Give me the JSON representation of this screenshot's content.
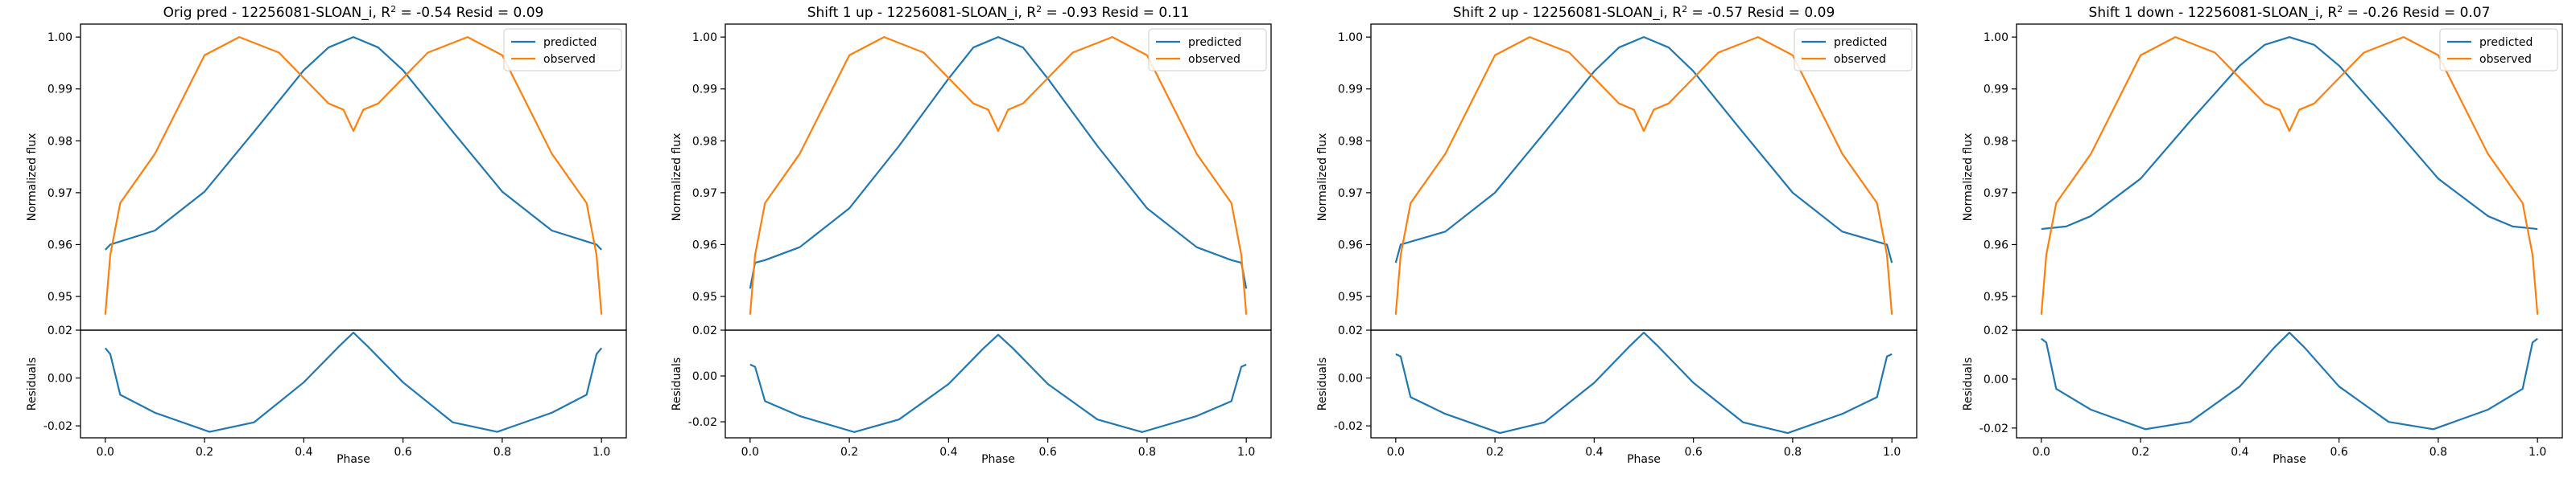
{
  "figure": {
    "colors": {
      "predicted": "#1f77b4",
      "observed": "#ff7f0e",
      "axes": "#000000"
    }
  },
  "chart_data": [
    {
      "type": "line",
      "title": "Orig pred - 12256081-SLOAN_i, R² = -0.54 Resid = 0.09",
      "xlabel": "Phase",
      "ylabel": "Normalized flux",
      "resid_ylabel": "Residuals",
      "xlim": [
        -0.05,
        1.05
      ],
      "ylim": [
        0.9435,
        1.0025
      ],
      "resid_ylim": [
        -0.025,
        0.02
      ],
      "xticks": [
        "0.0",
        "0.2",
        "0.4",
        "0.6",
        "0.8",
        "1.0"
      ],
      "yticks": [
        "0.95",
        "0.96",
        "0.97",
        "0.98",
        "0.99",
        "1.00"
      ],
      "resid_yticks": [
        "-0.02",
        "0.00",
        "0.02"
      ],
      "legend": {
        "position": "top-right",
        "entries": [
          "predicted",
          "observed"
        ]
      },
      "series": [
        {
          "name": "predicted",
          "x": [
            0.0,
            0.01,
            0.1,
            0.2,
            0.3,
            0.4,
            0.45,
            0.5,
            0.55,
            0.6,
            0.7,
            0.8,
            0.9,
            0.99,
            1.0
          ],
          "y": [
            0.959,
            0.96,
            0.9627,
            0.9702,
            0.9818,
            0.9936,
            0.998,
            1.0,
            0.998,
            0.9936,
            0.9818,
            0.9702,
            0.9627,
            0.96,
            0.959
          ]
        },
        {
          "name": "observed",
          "x": [
            0.0,
            0.01,
            0.03,
            0.1,
            0.2,
            0.27,
            0.35,
            0.45,
            0.48,
            0.5,
            0.52,
            0.55,
            0.65,
            0.73,
            0.8,
            0.9,
            0.97,
            0.99,
            1.0
          ],
          "y": [
            0.9465,
            0.958,
            0.968,
            0.9775,
            0.9965,
            1.0,
            0.997,
            0.9872,
            0.986,
            0.9819,
            0.986,
            0.9872,
            0.997,
            1.0,
            0.9965,
            0.9775,
            0.968,
            0.958,
            0.9465
          ]
        }
      ],
      "residuals": {
        "x": [
          0.0,
          0.01,
          0.03,
          0.1,
          0.21,
          0.3,
          0.4,
          0.47,
          0.5,
          0.53,
          0.6,
          0.7,
          0.79,
          0.9,
          0.97,
          0.99,
          1.0
        ],
        "y": [
          0.0125,
          0.01,
          -0.007,
          -0.0145,
          -0.0225,
          -0.0185,
          -0.0018,
          0.013,
          0.019,
          0.013,
          -0.0018,
          -0.0185,
          -0.0225,
          -0.0145,
          -0.007,
          0.01,
          0.0125
        ]
      }
    },
    {
      "type": "line",
      "title": "Shift 1 up - 12256081-SLOAN_i, R² = -0.93 Resid = 0.11",
      "xlabel": "Phase",
      "ylabel": "Normalized flux",
      "resid_ylabel": "Residuals",
      "xlim": [
        -0.05,
        1.05
      ],
      "ylim": [
        0.9435,
        1.0025
      ],
      "resid_ylim": [
        -0.027,
        0.02
      ],
      "xticks": [
        "0.0",
        "0.2",
        "0.4",
        "0.6",
        "0.8",
        "1.0"
      ],
      "yticks": [
        "0.95",
        "0.96",
        "0.97",
        "0.98",
        "0.99",
        "1.00"
      ],
      "resid_yticks": [
        "-0.02",
        "0.00",
        "0.02"
      ],
      "legend": {
        "position": "top-right",
        "entries": [
          "predicted",
          "observed"
        ]
      },
      "series": [
        {
          "name": "predicted",
          "x": [
            0.0,
            0.01,
            0.03,
            0.1,
            0.2,
            0.3,
            0.4,
            0.45,
            0.5,
            0.55,
            0.6,
            0.7,
            0.8,
            0.9,
            0.97,
            0.99,
            1.0
          ],
          "y": [
            0.9515,
            0.9565,
            0.957,
            0.9595,
            0.967,
            0.979,
            0.992,
            0.998,
            1.0,
            0.998,
            0.992,
            0.979,
            0.967,
            0.9595,
            0.957,
            0.9565,
            0.9515
          ]
        },
        {
          "name": "observed",
          "x": [
            0.0,
            0.01,
            0.03,
            0.1,
            0.2,
            0.27,
            0.35,
            0.45,
            0.48,
            0.5,
            0.52,
            0.55,
            0.65,
            0.73,
            0.8,
            0.9,
            0.97,
            0.99,
            1.0
          ],
          "y": [
            0.9465,
            0.958,
            0.968,
            0.9775,
            0.9965,
            1.0,
            0.997,
            0.9872,
            0.986,
            0.9819,
            0.986,
            0.9872,
            0.997,
            1.0,
            0.9965,
            0.9775,
            0.968,
            0.958,
            0.9465
          ]
        }
      ],
      "residuals": {
        "x": [
          0.0,
          0.01,
          0.03,
          0.1,
          0.21,
          0.3,
          0.4,
          0.47,
          0.5,
          0.53,
          0.6,
          0.7,
          0.79,
          0.9,
          0.97,
          0.99,
          1.0
        ],
        "y": [
          0.005,
          0.004,
          -0.011,
          -0.0175,
          -0.0245,
          -0.019,
          -0.0035,
          0.012,
          0.018,
          0.012,
          -0.0035,
          -0.019,
          -0.0245,
          -0.0175,
          -0.011,
          0.004,
          0.005
        ]
      }
    },
    {
      "type": "line",
      "title": "Shift 2 up - 12256081-SLOAN_i, R² = -0.57 Resid = 0.09",
      "xlabel": "Phase",
      "ylabel": "Normalized flux",
      "resid_ylabel": "Residuals",
      "xlim": [
        -0.05,
        1.05
      ],
      "ylim": [
        0.9435,
        1.0025
      ],
      "resid_ylim": [
        -0.025,
        0.02
      ],
      "xticks": [
        "0.0",
        "0.2",
        "0.4",
        "0.6",
        "0.8",
        "1.0"
      ],
      "yticks": [
        "0.95",
        "0.96",
        "0.97",
        "0.98",
        "0.99",
        "1.00"
      ],
      "resid_yticks": [
        "-0.02",
        "0.00",
        "0.02"
      ],
      "legend": {
        "position": "top-right",
        "entries": [
          "predicted",
          "observed"
        ]
      },
      "series": [
        {
          "name": "predicted",
          "x": [
            0.0,
            0.01,
            0.1,
            0.2,
            0.3,
            0.4,
            0.45,
            0.5,
            0.55,
            0.6,
            0.7,
            0.8,
            0.9,
            0.99,
            1.0
          ],
          "y": [
            0.9565,
            0.96,
            0.9625,
            0.97,
            0.9816,
            0.9934,
            0.998,
            1.0,
            0.998,
            0.9934,
            0.9816,
            0.97,
            0.9625,
            0.96,
            0.9565
          ]
        },
        {
          "name": "observed",
          "x": [
            0.0,
            0.01,
            0.03,
            0.1,
            0.2,
            0.27,
            0.35,
            0.45,
            0.48,
            0.5,
            0.52,
            0.55,
            0.65,
            0.73,
            0.8,
            0.9,
            0.97,
            0.99,
            1.0
          ],
          "y": [
            0.9465,
            0.958,
            0.968,
            0.9775,
            0.9965,
            1.0,
            0.997,
            0.9872,
            0.986,
            0.9819,
            0.986,
            0.9872,
            0.997,
            1.0,
            0.9965,
            0.9775,
            0.968,
            0.958,
            0.9465
          ]
        }
      ],
      "residuals": {
        "x": [
          0.0,
          0.01,
          0.03,
          0.1,
          0.21,
          0.3,
          0.4,
          0.47,
          0.5,
          0.53,
          0.6,
          0.7,
          0.79,
          0.9,
          0.97,
          0.99,
          1.0
        ],
        "y": [
          0.01,
          0.009,
          -0.008,
          -0.015,
          -0.023,
          -0.0185,
          -0.002,
          0.013,
          0.019,
          0.013,
          -0.002,
          -0.0185,
          -0.023,
          -0.015,
          -0.008,
          0.009,
          0.01
        ]
      }
    },
    {
      "type": "line",
      "title": "Shift 1 down - 12256081-SLOAN_i, R² = -0.26 Resid = 0.07",
      "xlabel": "Phase",
      "ylabel": "Normalized flux",
      "resid_ylabel": "Residuals",
      "xlim": [
        -0.05,
        1.05
      ],
      "ylim": [
        0.9435,
        1.0025
      ],
      "resid_ylim": [
        -0.024,
        0.02
      ],
      "xticks": [
        "0.0",
        "0.2",
        "0.4",
        "0.6",
        "0.8",
        "1.0"
      ],
      "yticks": [
        "0.95",
        "0.96",
        "0.97",
        "0.98",
        "0.99",
        "1.00"
      ],
      "resid_yticks": [
        "-0.02",
        "0.00",
        "0.02"
      ],
      "legend": {
        "position": "top-right",
        "entries": [
          "predicted",
          "observed"
        ]
      },
      "series": [
        {
          "name": "predicted",
          "x": [
            0.0,
            0.05,
            0.1,
            0.2,
            0.3,
            0.4,
            0.45,
            0.5,
            0.55,
            0.6,
            0.7,
            0.8,
            0.9,
            0.95,
            1.0
          ],
          "y": [
            0.963,
            0.9635,
            0.9655,
            0.9727,
            0.9838,
            0.9945,
            0.9985,
            1.0,
            0.9985,
            0.9945,
            0.9838,
            0.9727,
            0.9655,
            0.9635,
            0.963
          ]
        },
        {
          "name": "observed",
          "x": [
            0.0,
            0.01,
            0.03,
            0.1,
            0.2,
            0.27,
            0.35,
            0.45,
            0.48,
            0.5,
            0.52,
            0.55,
            0.65,
            0.73,
            0.8,
            0.9,
            0.97,
            0.99,
            1.0
          ],
          "y": [
            0.9465,
            0.958,
            0.968,
            0.9775,
            0.9965,
            1.0,
            0.997,
            0.9872,
            0.986,
            0.9819,
            0.986,
            0.9872,
            0.997,
            1.0,
            0.9965,
            0.9775,
            0.968,
            0.958,
            0.9465
          ]
        }
      ],
      "residuals": {
        "x": [
          0.0,
          0.01,
          0.03,
          0.1,
          0.21,
          0.3,
          0.4,
          0.47,
          0.5,
          0.53,
          0.6,
          0.7,
          0.79,
          0.9,
          0.97,
          0.99,
          1.0
        ],
        "y": [
          0.0165,
          0.015,
          -0.004,
          -0.0125,
          -0.0205,
          -0.0175,
          -0.003,
          0.013,
          0.019,
          0.013,
          -0.003,
          -0.0175,
          -0.0205,
          -0.0125,
          -0.004,
          0.015,
          0.0165
        ]
      }
    }
  ]
}
